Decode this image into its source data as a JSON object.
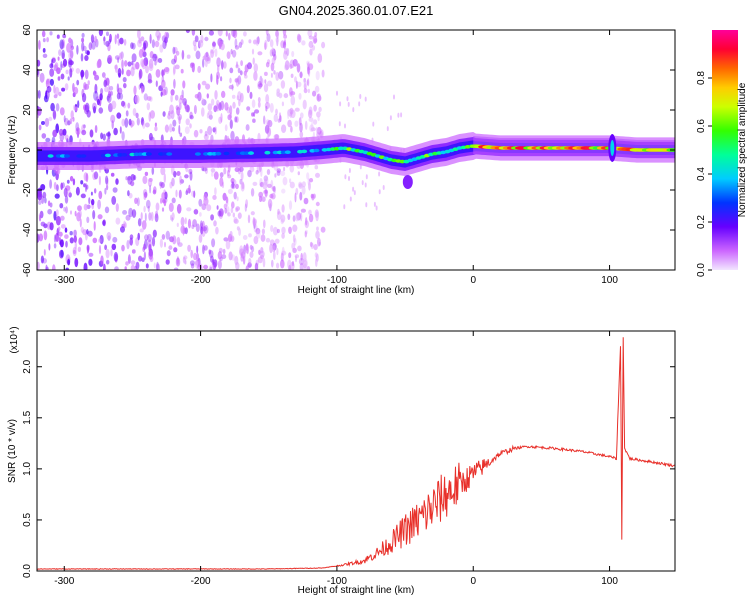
{
  "title": "GN04.2025.360.01.07.E21",
  "chart_data": [
    {
      "type": "heatmap",
      "xlabel": "Height of straight line (km)",
      "ylabel": "Frequency (Hz)",
      "xlim": [
        -320,
        148
      ],
      "ylim": [
        -60,
        60
      ],
      "xticks": [
        -300,
        -200,
        -100,
        0,
        100
      ],
      "yticks": [
        -60,
        -40,
        -20,
        0,
        20,
        40,
        60
      ],
      "colorbar": {
        "label": "Normalized spectral amplitude",
        "range": [
          0,
          1
        ],
        "ticks": [
          0.0,
          0.2,
          0.4,
          0.6,
          0.8
        ]
      },
      "ridge": {
        "x": [
          -320,
          -280,
          -240,
          -200,
          -160,
          -130,
          -110,
          -95,
          -80,
          -70,
          -60,
          -50,
          -40,
          -30,
          -20,
          -10,
          0,
          20,
          60,
          100,
          120,
          148
        ],
        "y": [
          -3,
          -3,
          -2,
          -2,
          -1.5,
          -1,
          0,
          1,
          -1,
          -3,
          -5,
          -6,
          -4,
          -2,
          -1,
          1,
          2,
          1,
          1,
          1,
          0,
          0
        ]
      }
    },
    {
      "type": "line",
      "xlabel": "Height of straight line (km)",
      "ylabel": "SNR (10 * v/v)",
      "multiplier": "(x10⁴)",
      "xlim": [
        -320,
        148
      ],
      "ylim": [
        0,
        2.35
      ],
      "xticks": [
        -300,
        -200,
        -100,
        0,
        100
      ],
      "yticks": [
        0.0,
        0.5,
        1.0,
        1.5,
        2.0
      ],
      "series": [
        {
          "color": "#e8302a",
          "x": [
            -320,
            -250,
            -150,
            -110,
            -95,
            -80,
            -70,
            -60,
            -50,
            -40,
            -30,
            -20,
            -10,
            0,
            10,
            20,
            30,
            40,
            60,
            80,
            100,
            105,
            108,
            109,
            110,
            111,
            115,
            130,
            148
          ],
          "y": [
            0.02,
            0.02,
            0.02,
            0.03,
            0.06,
            0.1,
            0.18,
            0.28,
            0.4,
            0.5,
            0.62,
            0.75,
            0.85,
            0.95,
            1.05,
            1.15,
            1.2,
            1.22,
            1.2,
            1.17,
            1.12,
            1.1,
            2.2,
            0.3,
            2.3,
            1.2,
            1.1,
            1.07,
            1.03
          ]
        }
      ]
    }
  ]
}
